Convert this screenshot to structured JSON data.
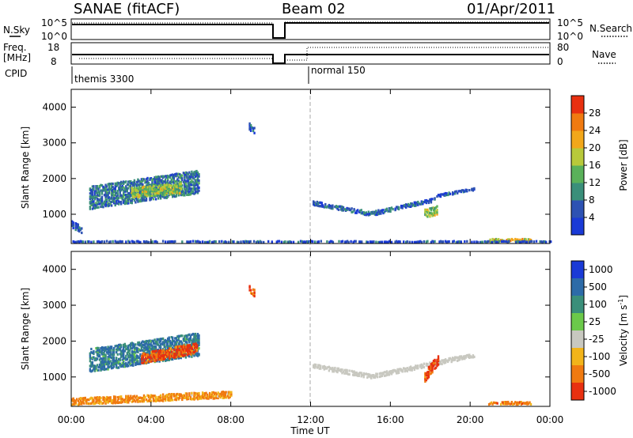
{
  "header": {
    "title": "SANAE (fitACF)",
    "beam": "Beam 02",
    "date": "01/Apr/2011"
  },
  "panels": {
    "nsky": {
      "label": "N.Sky",
      "left_ticks": [
        "10^5",
        "10^0"
      ],
      "right_ticks": [
        "10^5",
        "10^0"
      ],
      "right_label": "N.Search"
    },
    "freq": {
      "label_line1": "Freq.",
      "label_line2": "[MHz]",
      "left_ticks": [
        "18",
        "8"
      ],
      "right_ticks": [
        "80",
        "0"
      ],
      "right_label": "Nave"
    },
    "cpid": {
      "label": "CPID",
      "programs": [
        {
          "name": "themis 3300",
          "start_hour": 0
        },
        {
          "name": "normal 150",
          "start_hour": 12
        }
      ]
    }
  },
  "axes": {
    "ylabel": "Slant Range [km]",
    "y_ticks": [
      "1000",
      "2000",
      "3000",
      "4000"
    ],
    "x_ticks": [
      "00:00",
      "04:00",
      "08:00",
      "12:00",
      "16:00",
      "20:00",
      "00:00"
    ],
    "xlabel": "Time UT"
  },
  "colorbars": {
    "power": {
      "label": "Power [dB]",
      "ticks": [
        "4",
        "8",
        "12",
        "16",
        "20",
        "24",
        "28"
      ],
      "colors": [
        "#1a3ad6",
        "#2d52b3",
        "#3a8f7a",
        "#5ab15a",
        "#b8c93a",
        "#f2a71a",
        "#f07a10",
        "#e83010"
      ]
    },
    "velocity": {
      "label": "Velocity [m s",
      "label_sup": "-1",
      "label_close": "]",
      "ticks": [
        "1000",
        "500",
        "100",
        "25",
        "-25",
        "-100",
        "-500",
        "-1000"
      ],
      "colors": [
        "#1a3ad6",
        "#2d6ba8",
        "#3a8f7a",
        "#6bc94a",
        "#c8c8c0",
        "#f2b41a",
        "#f07a10",
        "#e83010"
      ]
    }
  },
  "chart_data": [
    {
      "type": "heatmap",
      "title": "Power [dB]",
      "xlabel": "Time UT",
      "ylabel": "Slant Range [km]",
      "xlim": [
        0,
        24
      ],
      "ylim": [
        180,
        4500
      ],
      "clim": [
        0,
        30
      ],
      "regions": [
        {
          "t": [
            0.9,
            6.4
          ],
          "range_center": [
            1450,
            1900
          ],
          "thickness": 650,
          "value": 8
        },
        {
          "t": [
            3.0,
            5.5
          ],
          "range_center": [
            1600,
            1700
          ],
          "thickness": 300,
          "value": 16
        },
        {
          "t": [
            12.1,
            15.0
          ],
          "range_center": [
            1300,
            1000
          ],
          "thickness": 120,
          "value": 6
        },
        {
          "t": [
            15.0,
            18.2
          ],
          "range_center": [
            1000,
            1400
          ],
          "thickness": 120,
          "value": 6
        },
        {
          "t": [
            17.7,
            18.3
          ],
          "range_center": [
            1000,
            1100
          ],
          "thickness": 250,
          "value": 16
        },
        {
          "t": [
            18.3,
            20.2
          ],
          "range_center": [
            1500,
            1700
          ],
          "thickness": 80,
          "value": 5
        },
        {
          "t": [
            8.9,
            9.2
          ],
          "range_center": [
            3450,
            3300
          ],
          "thickness": 200,
          "value": 4
        },
        {
          "t": [
            0.0,
            0.5
          ],
          "range_center": [
            700,
            550
          ],
          "thickness": 200,
          "value": 6
        },
        {
          "t": [
            20.9,
            23.0
          ],
          "range_center": [
            260,
            260
          ],
          "thickness": 80,
          "value": 20
        },
        {
          "t": [
            0.0,
            24.0
          ],
          "range_center": [
            220,
            220
          ],
          "thickness": 30,
          "value": 5
        }
      ]
    },
    {
      "type": "heatmap",
      "title": "Velocity [m s-1]",
      "xlabel": "Time UT",
      "ylabel": "Slant Range [km]",
      "xlim": [
        0,
        24
      ],
      "ylim": [
        180,
        4500
      ],
      "clim": [
        -1000,
        1000
      ],
      "regions": [
        {
          "t": [
            0.9,
            6.4
          ],
          "range_center": [
            1450,
            1900
          ],
          "thickness": 650,
          "value": 300
        },
        {
          "t": [
            3.5,
            6.3
          ],
          "range_center": [
            1500,
            1800
          ],
          "thickness": 300,
          "value": -300
        },
        {
          "t": [
            12.1,
            15.0
          ],
          "range_center": [
            1300,
            1000
          ],
          "thickness": 120,
          "value": 0
        },
        {
          "t": [
            15.0,
            20.2
          ],
          "range_center": [
            1000,
            1600
          ],
          "thickness": 120,
          "value": 0
        },
        {
          "t": [
            17.7,
            18.4
          ],
          "range_center": [
            1000,
            1500
          ],
          "thickness": 300,
          "value": -400
        },
        {
          "t": [
            20.9,
            23.0
          ],
          "range_center": [
            260,
            260
          ],
          "thickness": 80,
          "value": -150
        },
        {
          "t": [
            0.0,
            8.0
          ],
          "range_center": [
            300,
            500
          ],
          "thickness": 200,
          "value": -80
        },
        {
          "t": [
            8.9,
            9.2
          ],
          "range_center": [
            3450,
            3300
          ],
          "thickness": 200,
          "value": -200
        }
      ]
    }
  ]
}
